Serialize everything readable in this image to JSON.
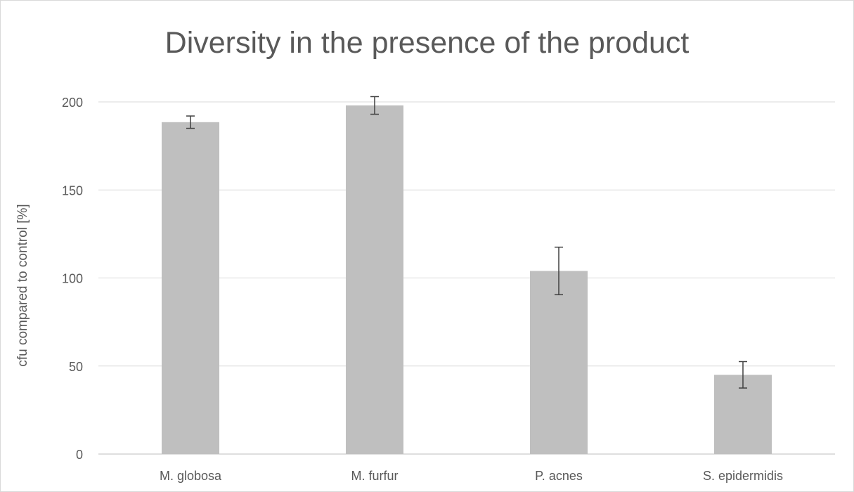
{
  "chart_data": {
    "type": "bar",
    "title": "Diversity in the presence of the product",
    "xlabel": "",
    "ylabel": "cfu compared to control [%]",
    "categories": [
      "M. globosa",
      "M. furfur",
      "P. acnes",
      "S. epidermidis"
    ],
    "values": [
      188.5,
      198,
      104,
      45
    ],
    "error_bars": [
      3.5,
      5,
      13.5,
      7.5
    ],
    "ylim": [
      0,
      200
    ],
    "yticks": [
      0,
      50,
      100,
      150,
      200
    ],
    "ytick_labels": [
      "0",
      "50",
      "100",
      "150",
      "200"
    ],
    "grid": true,
    "legend": "none",
    "bar_color": "#bfbfbf",
    "error_bar_color": "#404040",
    "grid_color": "#d9d9d9",
    "text_color": "#595959"
  }
}
